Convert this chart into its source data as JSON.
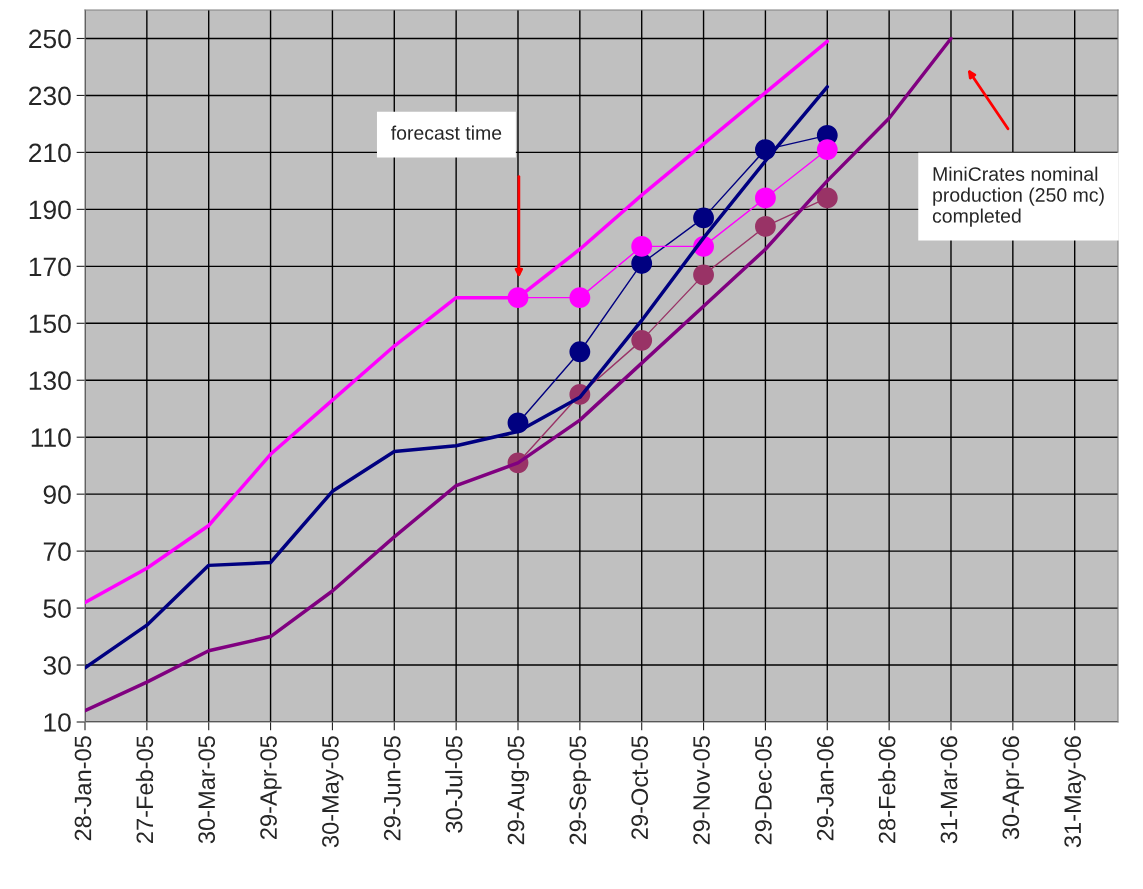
{
  "chart_data": {
    "type": "line",
    "categories": [
      "28-Jan-05",
      "27-Feb-05",
      "30-Mar-05",
      "29-Apr-05",
      "30-May-05",
      "29-Jun-05",
      "30-Jul-05",
      "29-Aug-05",
      "29-Sep-05",
      "29-Oct-05",
      "29-Nov-05",
      "29-Dec-05",
      "29-Jan-06",
      "28-Feb-06",
      "31-Mar-06",
      "30-Apr-06",
      "31-May-06"
    ],
    "series": [
      {
        "color": "#ff00ff",
        "marker": "none",
        "values": [
          52,
          64,
          79,
          104,
          123,
          142,
          159,
          159,
          176,
          195,
          213,
          231,
          249,
          null,
          null,
          null,
          null
        ]
      },
      {
        "color": "#000080",
        "marker": "none",
        "values": [
          29,
          44,
          65,
          66,
          91,
          105,
          107,
          112,
          124,
          151,
          180,
          207,
          233,
          null,
          null,
          null,
          null
        ]
      },
      {
        "color": "#800080",
        "marker": "none",
        "values": [
          14,
          24,
          35,
          40,
          56,
          75,
          93,
          101,
          116,
          136,
          156,
          176,
          200,
          222,
          250,
          null,
          null
        ]
      },
      {
        "color": "#000080",
        "marker": "circle",
        "values": [
          null,
          null,
          null,
          null,
          null,
          null,
          null,
          115,
          140,
          171,
          187,
          211,
          216,
          null,
          null,
          null,
          null
        ]
      },
      {
        "color": "#ff00ff",
        "marker": "circle",
        "values": [
          null,
          null,
          null,
          null,
          null,
          null,
          null,
          159,
          159,
          177,
          177,
          194,
          211,
          null,
          null,
          null,
          null
        ]
      },
      {
        "color": "#993366",
        "marker": "circle",
        "values": [
          null,
          null,
          null,
          null,
          null,
          null,
          null,
          101,
          125,
          144,
          167,
          184,
          194,
          null,
          null,
          null,
          null
        ]
      }
    ],
    "ylim": [
      10,
      260
    ],
    "yticks": [
      10,
      30,
      50,
      70,
      90,
      110,
      130,
      150,
      170,
      190,
      210,
      230,
      250
    ],
    "grid": true,
    "legend": false,
    "annotations": [
      "forecast time",
      "MiniCrates nominal production (250 mc) completed"
    ]
  }
}
